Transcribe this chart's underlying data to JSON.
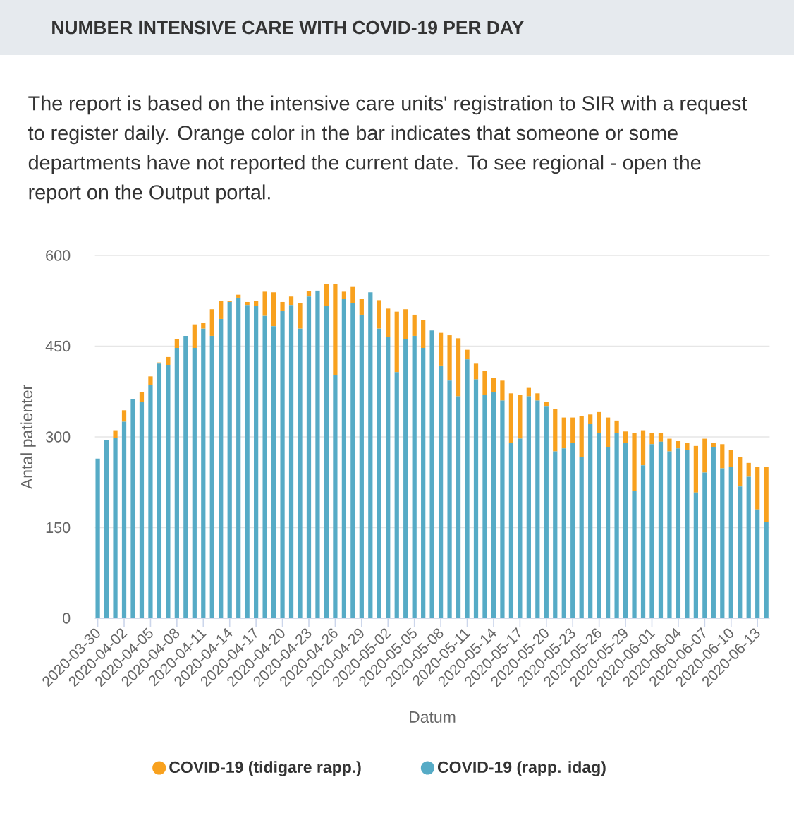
{
  "chart_data": {
    "type": "bar",
    "title": "NUMBER INTENSIVE CARE WITH COVID-19 PER DAY",
    "subtitle": "The report is based on the intensive care units' registration to SIR with a request to register daily. Orange color in the bar indicates that someone or some departments have not reported the current date. To see regional - open the report on the Output portal.",
    "xlabel": "Datum",
    "ylabel": "Antal patienter",
    "categories": [
      "2020-03-30",
      null,
      null,
      "2020-04-02",
      null,
      null,
      "2020-04-05",
      null,
      null,
      "2020-04-08",
      null,
      null,
      "2020-04-11",
      null,
      null,
      "2020-04-14",
      null,
      null,
      "2020-04-17",
      null,
      null,
      "2020-04-20",
      null,
      null,
      "2020-04-23",
      null,
      null,
      "2020-04-26",
      null,
      null,
      "2020-04-29",
      null,
      null,
      "2020-05-02",
      null,
      null,
      "2020-05-05",
      null,
      null,
      "2020-05-08",
      null,
      null,
      "2020-05-11",
      null,
      null,
      "2020-05-14",
      null,
      null,
      "2020-05-17",
      null,
      null,
      "2020-05-20",
      null,
      null,
      "2020-05-23",
      null,
      null,
      "2020-05-26",
      null,
      null,
      "2020-05-29",
      null,
      null,
      "2020-06-01",
      null,
      null,
      "2020-06-04",
      null,
      null,
      "2020-06-07",
      null,
      null,
      "2020-06-10",
      null,
      null,
      "2020-06-13",
      null
    ],
    "series": [
      {
        "name": "COVID-19 (rapp. idag)",
        "color": "#56abc6",
        "values": [
          264,
          295,
          298,
          325,
          362,
          358,
          386,
          421,
          419,
          447,
          467,
          447,
          479,
          467,
          495,
          523,
          530,
          518,
          516,
          500,
          483,
          509,
          518,
          479,
          532,
          542,
          516,
          402,
          528,
          521,
          502,
          539,
          479,
          465,
          407,
          462,
          467,
          447,
          476,
          418,
          393,
          367,
          428,
          395,
          369,
          374,
          360,
          290,
          297,
          367,
          360,
          351,
          276,
          281,
          290,
          267,
          321,
          306,
          283,
          306,
          290,
          211,
          253,
          288,
          292,
          276,
          281,
          278,
          208,
          241,
          283,
          248,
          250,
          218,
          234,
          180,
          159
        ]
      },
      {
        "name": "COVID-19 (tidigare rapp.)",
        "color": "#f8a11e",
        "values": [
          0,
          0,
          13,
          19,
          0,
          16,
          14,
          2,
          13,
          15,
          0,
          39,
          9,
          44,
          30,
          2,
          5,
          5,
          9,
          40,
          56,
          14,
          14,
          42,
          9,
          0,
          37,
          151,
          12,
          28,
          26,
          0,
          47,
          47,
          100,
          49,
          35,
          46,
          0,
          54,
          75,
          96,
          16,
          26,
          40,
          23,
          33,
          82,
          72,
          14,
          12,
          7,
          70,
          51,
          42,
          68,
          16,
          35,
          49,
          21,
          19,
          96,
          58,
          19,
          14,
          21,
          12,
          12,
          77,
          56,
          7,
          40,
          28,
          49,
          23,
          70,
          91
        ]
      }
    ],
    "stacked": true,
    "ylim": [
      0,
      600
    ],
    "yticks": [
      0,
      150,
      300,
      450,
      600
    ],
    "grid": "y",
    "legend": "bottom"
  }
}
